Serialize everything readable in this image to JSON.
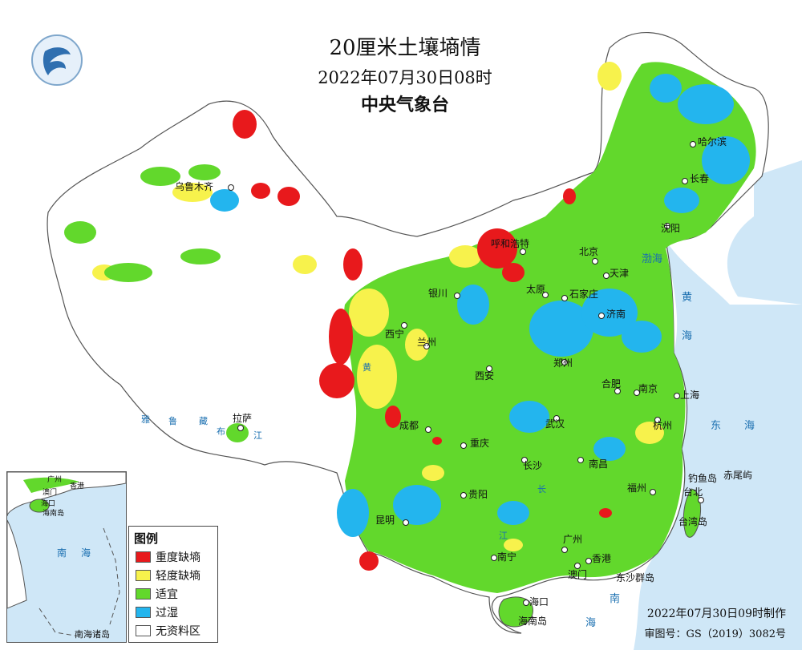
{
  "title": "20厘米土壤墒情",
  "date_time": "2022年07月30日08时",
  "agency": "中央气象台",
  "legend": {
    "title": "图例",
    "items": [
      {
        "label": "重度缺墒",
        "color": "#e8191c"
      },
      {
        "label": "轻度缺墒",
        "color": "#f7f24c"
      },
      {
        "label": "适宜",
        "color": "#62d82c"
      },
      {
        "label": "过湿",
        "color": "#23b5ee"
      },
      {
        "label": "无资料区",
        "color": "#ffffff"
      }
    ]
  },
  "footer": {
    "made": "2022年07月30日09时制作",
    "review": "审图号：GS（2019）3082号"
  },
  "cities": [
    {
      "name": "乌鲁木齐"
    },
    {
      "name": "哈尔滨"
    },
    {
      "name": "长春"
    },
    {
      "name": "沈阳"
    },
    {
      "name": "呼和浩特"
    },
    {
      "name": "北京"
    },
    {
      "name": "天津"
    },
    {
      "name": "银川"
    },
    {
      "name": "太原"
    },
    {
      "name": "石家庄"
    },
    {
      "name": "济南"
    },
    {
      "name": "西宁"
    },
    {
      "name": "兰州"
    },
    {
      "name": "郑州"
    },
    {
      "name": "西安"
    },
    {
      "name": "合肥"
    },
    {
      "name": "南京"
    },
    {
      "name": "上海"
    },
    {
      "name": "拉萨"
    },
    {
      "name": "成都"
    },
    {
      "name": "武汉"
    },
    {
      "name": "杭州"
    },
    {
      "name": "重庆"
    },
    {
      "name": "长沙"
    },
    {
      "name": "南昌"
    },
    {
      "name": "福州"
    },
    {
      "name": "台北"
    },
    {
      "name": "贵阳"
    },
    {
      "name": "昆明"
    },
    {
      "name": "广州"
    },
    {
      "name": "南宁"
    },
    {
      "name": "香港"
    },
    {
      "name": "澳门"
    },
    {
      "name": "海口"
    }
  ],
  "features": {
    "seas": [
      "渤海",
      "黄",
      "海",
      "东",
      "海",
      "南",
      "海"
    ],
    "islands": [
      "钓鱼岛",
      "赤尾屿",
      "台湾岛",
      "东沙群岛",
      "海南岛"
    ],
    "rivers": [
      "雅",
      "鲁",
      "藏",
      "布",
      "江",
      "黄",
      "长",
      "江"
    ],
    "inset_labels": [
      "广州",
      "香港",
      "澳门",
      "海口",
      "海南岛",
      "南",
      "海",
      "南海诸岛"
    ]
  }
}
